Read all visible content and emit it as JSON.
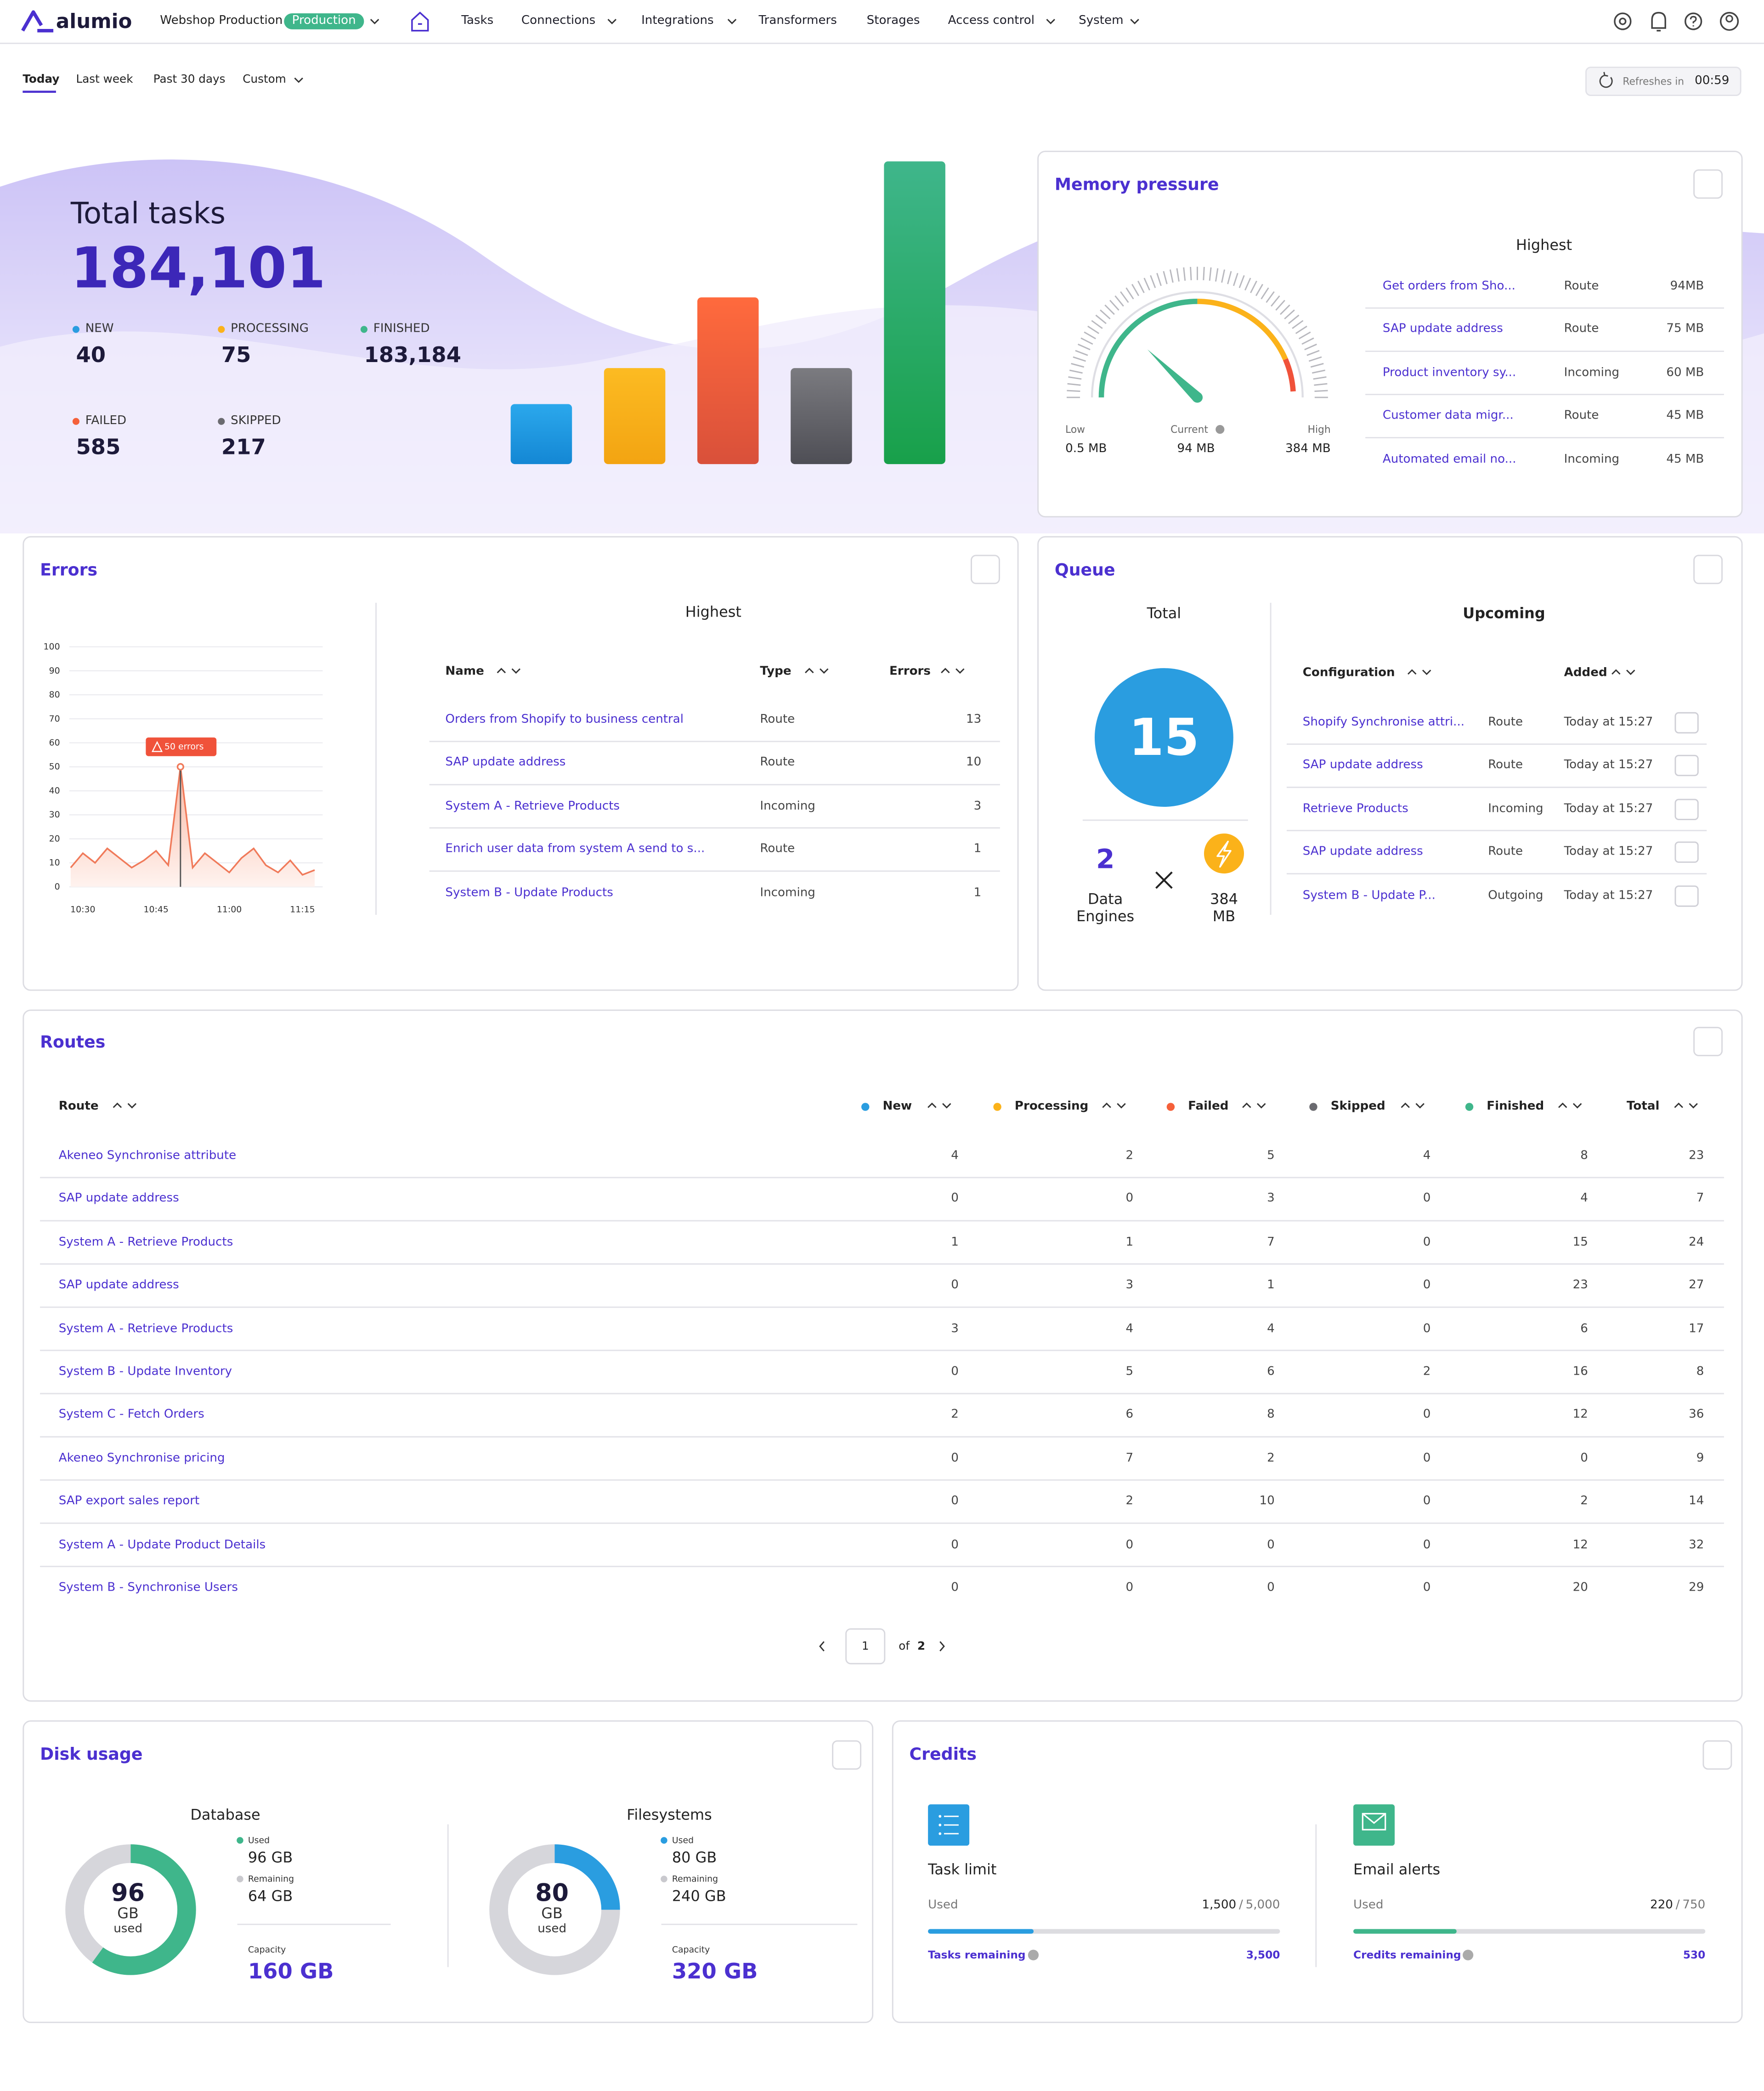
{
  "nav": {
    "logo": "alumio",
    "environment": "Webshop Production",
    "badge": "Production",
    "items": [
      "Tasks",
      "Connections",
      "Integrations",
      "Transformers",
      "Storages",
      "Access control",
      "System"
    ]
  },
  "filters": {
    "tabs": [
      "Today",
      "Last week",
      "Past 30 days",
      "Custom"
    ],
    "refresh_label": "Refreshes in",
    "refresh_time": "00:59"
  },
  "total_tasks": {
    "title": "Total tasks",
    "value": "184,101",
    "stats": [
      {
        "label": "NEW",
        "value": "40",
        "color": "#2a9de0"
      },
      {
        "label": "PROCESSING",
        "value": "75",
        "color": "#fbb21a"
      },
      {
        "label": "FINISHED",
        "value": "183,184",
        "color": "#3fb68b"
      },
      {
        "label": "FAILED",
        "value": "585",
        "color": "#f5603a"
      },
      {
        "label": "SKIPPED",
        "value": "217",
        "color": "#6b6b70"
      }
    ]
  },
  "memory": {
    "title": "Memory pressure",
    "highest": "Highest",
    "gauge": {
      "low_label": "Low",
      "current_label": "Current",
      "high_label": "High",
      "low": {
        "value": 0.5,
        "label": "0.5 MB"
      },
      "current": {
        "value": 94,
        "label": "94 MB"
      },
      "high": {
        "value": 384,
        "label": "384 MB"
      }
    },
    "rows": [
      [
        "Get orders from Sho...",
        "Route",
        "94MB"
      ],
      [
        "SAP update address",
        "Route",
        "75 MB"
      ],
      [
        "Product inventory sy...",
        "Incoming",
        "60 MB"
      ],
      [
        "Customer data migr...",
        "Route",
        "45 MB"
      ],
      [
        "Automated email no...",
        "Incoming",
        "45 MB"
      ]
    ]
  },
  "errors": {
    "title": "Errors",
    "chart": {
      "type": "line",
      "categories": [
        null,
        "10:30",
        null,
        null,
        null,
        null,
        null,
        "10:45",
        null,
        null,
        null,
        null,
        null,
        "11:00",
        null,
        null,
        null,
        null,
        null,
        "11:15",
        null
      ],
      "values": [
        8,
        14,
        10,
        16,
        12,
        8,
        11,
        15,
        9,
        50,
        8,
        14,
        10,
        6,
        12,
        16,
        9,
        6,
        11,
        5,
        7
      ],
      "color": "#f07a5a",
      "ylim": [
        0,
        100
      ],
      "yticks": [
        0,
        10,
        20,
        30,
        40,
        50,
        60,
        70,
        80,
        90,
        100
      ],
      "grid": true,
      "annotation": "50 errors"
    },
    "highest": "Highest",
    "columns": [
      "Name",
      "Type",
      "Errors"
    ],
    "rows": [
      [
        "Orders from Shopify to business central",
        "Route",
        13
      ],
      [
        "SAP update address",
        "Route",
        10
      ],
      [
        "System A - Retrieve Products",
        "Incoming",
        3
      ],
      [
        "Enrich user data from system A send to s...",
        "Route",
        1
      ],
      [
        "System B - Update Products",
        "Incoming",
        1
      ]
    ]
  },
  "queue": {
    "title": "Queue",
    "total_label": "Total",
    "total": "15",
    "engines": "2",
    "engines_label": "Data Engines",
    "memory": "384 MB",
    "upcoming": "Upcoming",
    "columns": [
      "Configuration",
      "Added"
    ],
    "rows": [
      [
        "Shopify Synchronise attri...",
        "Route",
        "Today at 15:27"
      ],
      [
        "SAP update address",
        "Route",
        "Today at 15:27"
      ],
      [
        "Retrieve Products",
        "Incoming",
        "Today at 15:27"
      ],
      [
        "SAP update address",
        "Route",
        "Today at 15:27"
      ],
      [
        "System B - Update P...",
        "Outgoing",
        "Today at 15:27"
      ]
    ]
  },
  "routes": {
    "title": "Routes",
    "columns": [
      {
        "name": "Route"
      },
      {
        "name": "New",
        "color": "#2a9de0"
      },
      {
        "name": "Processing",
        "color": "#fbb21a"
      },
      {
        "name": "Failed",
        "color": "#f5603a"
      },
      {
        "name": "Skipped",
        "color": "#6b6b70"
      },
      {
        "name": "Finished",
        "color": "#3fb68b"
      },
      {
        "name": "Total"
      }
    ],
    "rows": [
      [
        "Akeneo Synchronise attribute",
        4,
        2,
        5,
        4,
        8,
        23
      ],
      [
        "SAP update address",
        0,
        0,
        3,
        0,
        4,
        7
      ],
      [
        "System A - Retrieve Products",
        1,
        1,
        7,
        0,
        15,
        24
      ],
      [
        "SAP update address",
        0,
        3,
        1,
        0,
        23,
        27
      ],
      [
        "System A - Retrieve Products",
        3,
        4,
        4,
        0,
        6,
        17
      ],
      [
        "System B - Update Inventory",
        0,
        5,
        6,
        2,
        16,
        8
      ],
      [
        "System C - Fetch Orders",
        2,
        6,
        8,
        0,
        12,
        36
      ],
      [
        "Akeneo Synchronise pricing",
        0,
        7,
        2,
        0,
        0,
        9
      ],
      [
        "SAP export sales report",
        0,
        2,
        10,
        0,
        2,
        14
      ],
      [
        "System A - Update Product Details",
        0,
        0,
        0,
        0,
        12,
        32
      ],
      [
        "System B - Synchronise Users",
        0,
        0,
        0,
        0,
        20,
        29
      ]
    ],
    "page": "1",
    "of": "of",
    "pages": "2"
  },
  "disk": {
    "title": "Disk usage",
    "parts": [
      {
        "title": "Database",
        "used": 96,
        "remaining": 64,
        "unit": "GB",
        "used_caption": "used",
        "used_label": "Used",
        "used_value": "96 GB",
        "remaining_label": "Remaining",
        "remaining_value": "64 GB",
        "capacity_label": "Capacity",
        "capacity_value": "160 GB",
        "color": "#3fb68b"
      },
      {
        "title": "Filesystems",
        "used": 80,
        "remaining": 240,
        "unit": "GB",
        "used_caption": "used",
        "used_label": "Used",
        "used_value": "80 GB",
        "remaining_label": "Remaining",
        "remaining_value": "240 GB",
        "capacity_label": "Capacity",
        "capacity_value": "320 GB",
        "color": "#2a9de0"
      }
    ]
  },
  "credits": {
    "title": "Credits",
    "parts": [
      {
        "title": "Task limit",
        "used_label": "Used",
        "used": {
          "value": 1500,
          "label": "1,500"
        },
        "separator": "/",
        "limit": {
          "value": 5000,
          "label": "5,000"
        },
        "remaining_label": "Tasks remaining",
        "remaining": "3,500",
        "color": "#2a9de0"
      },
      {
        "title": "Email alerts",
        "used_label": "Used",
        "used": {
          "value": 220,
          "label": "220"
        },
        "separator": "/",
        "limit": {
          "value": 750,
          "label": "750"
        },
        "remaining_label": "Credits remaining",
        "remaining": "530",
        "color": "#3fb68b"
      }
    ]
  }
}
